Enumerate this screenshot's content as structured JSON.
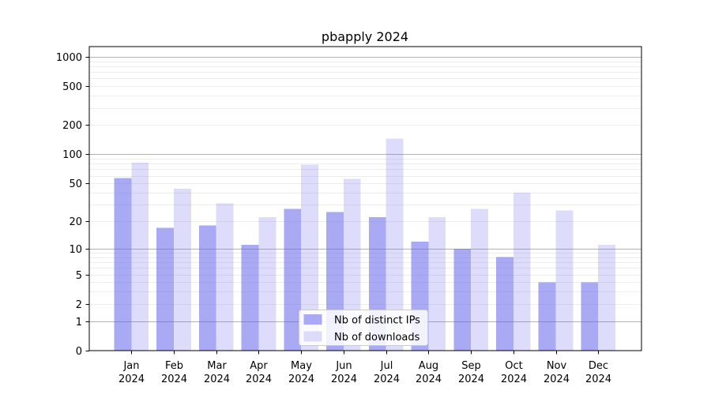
{
  "chart_data": {
    "type": "bar",
    "title": "pbapply 2024",
    "year_label": "2024",
    "months": [
      "Jan",
      "Feb",
      "Mar",
      "Apr",
      "May",
      "Jun",
      "Jul",
      "Aug",
      "Sep",
      "Oct",
      "Nov",
      "Dec"
    ],
    "series": [
      {
        "name": "Nb of distinct IPs",
        "values": [
          57,
          17,
          18,
          11,
          27,
          25,
          22,
          12,
          10,
          8,
          4,
          4
        ],
        "fill": "rgba(98,98,235,0.55)",
        "hex_on_white": "#a9a9f4"
      },
      {
        "name": "Nb of downloads",
        "values": [
          82,
          44,
          31,
          22,
          78,
          56,
          146,
          22,
          27,
          40,
          26,
          11
        ],
        "fill": "rgba(98,98,235,0.22)",
        "hex_on_white": "#dcdcfa"
      }
    ],
    "y_axis": {
      "scale": "log10(x+1)",
      "tick_values": [
        0,
        1,
        2,
        5,
        10,
        20,
        50,
        100,
        200,
        500,
        1000
      ],
      "range": [
        0,
        1300
      ]
    },
    "x_axis": {
      "label_line2": "2024"
    },
    "grid": {
      "minor_color": "#ededed",
      "major_color": "#b2b2b2",
      "major_values": [
        1,
        10,
        100,
        1000
      ]
    },
    "legend": {
      "position": "lower-center",
      "background": "rgba(255,255,255,0.85)",
      "border_color": "#cccccc"
    },
    "axis_color": "#000000"
  }
}
